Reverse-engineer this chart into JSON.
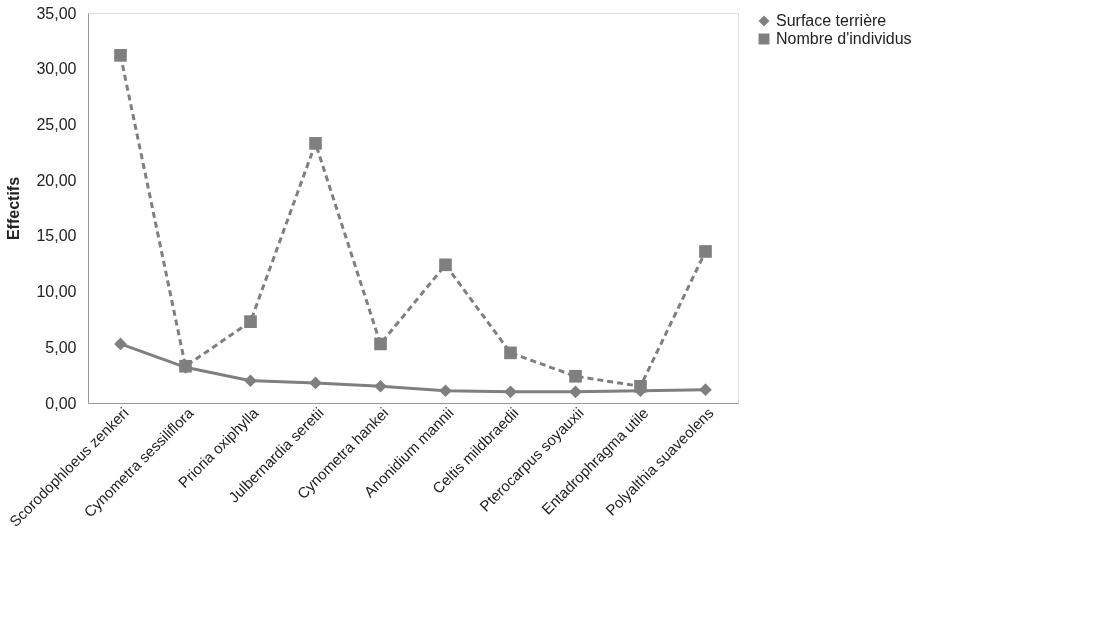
{
  "chart_data": {
    "type": "line",
    "ylabel": "Effectifs",
    "categories": [
      "Scorodophloeus zenkeri",
      "Cynometra sessiliflora",
      "Prioria oxiphylla",
      "Julbernardia seretii",
      "Cynometra hankei",
      "Anonidium mannii",
      "Celtis mildbraedii",
      "Pterocarpus soyauxii",
      "Entadrophragma utile",
      "Polyalthia suaveolens"
    ],
    "series": [
      {
        "name": "Surface terrière",
        "color": "#7f7f7f",
        "marker": "diamond",
        "line_style": "solid",
        "values": [
          5.3,
          3.2,
          2.0,
          1.8,
          1.5,
          1.1,
          1.0,
          1.0,
          1.1,
          1.2
        ]
      },
      {
        "name": "Nombre d'individus",
        "color": "#7f7f7f",
        "marker": "square",
        "line_style": "dashed",
        "values": [
          31.2,
          3.3,
          7.3,
          23.3,
          5.3,
          12.4,
          4.5,
          2.4,
          1.5,
          13.6
        ]
      }
    ],
    "ylim": [
      0,
      35
    ],
    "yticks": [
      {
        "value": 0,
        "label": "0,00"
      },
      {
        "value": 5,
        "label": "5,00"
      },
      {
        "value": 10,
        "label": "10,00"
      },
      {
        "value": 15,
        "label": "15,00"
      },
      {
        "value": 20,
        "label": "20,00"
      },
      {
        "value": 25,
        "label": "25,00"
      },
      {
        "value": 30,
        "label": "30,00"
      },
      {
        "value": 35,
        "label": "35,00"
      }
    ],
    "grid": false,
    "legend": "right"
  }
}
